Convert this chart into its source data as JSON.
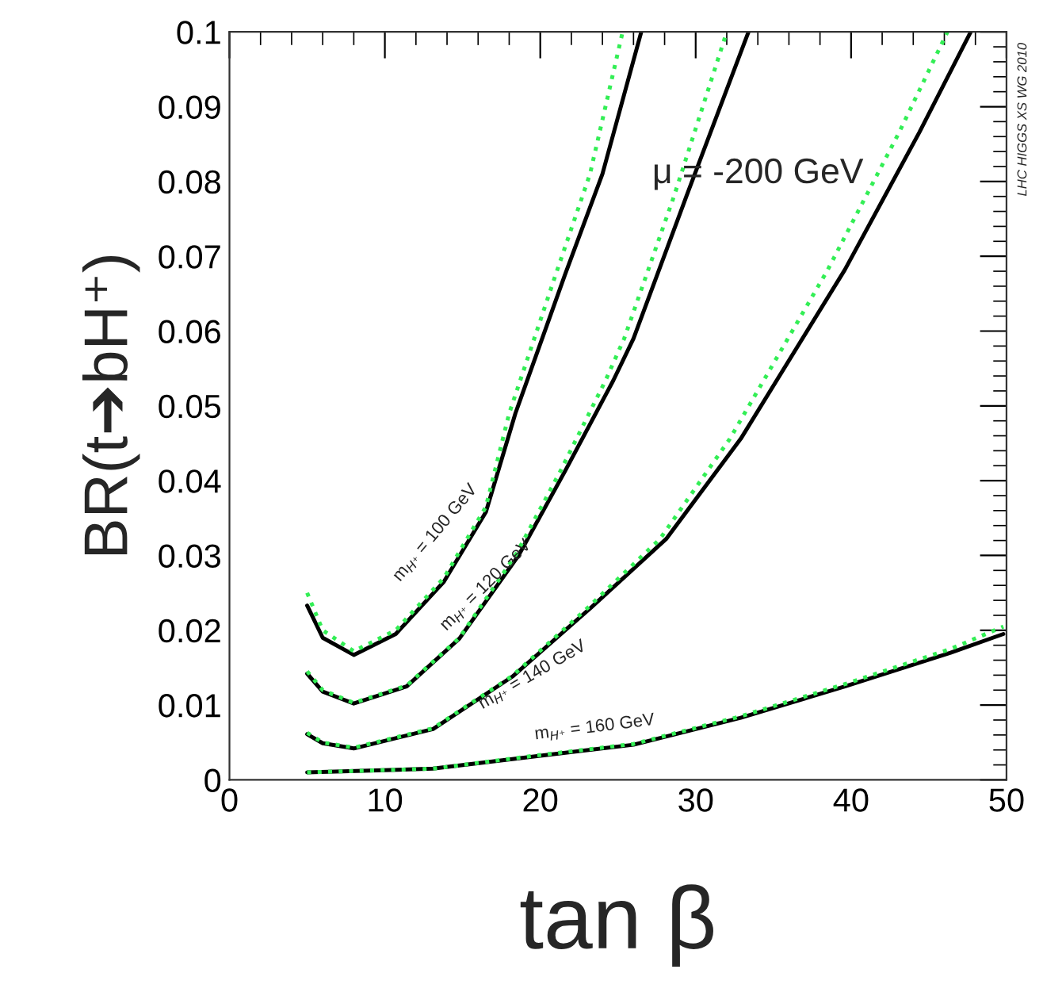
{
  "chart_data": {
    "type": "line",
    "xlabel": "tan β",
    "ylabel": "BR(t➔bH⁺)",
    "xlim": [
      0,
      50
    ],
    "ylim": [
      0,
      0.1
    ],
    "xticks": [
      0,
      10,
      20,
      30,
      40,
      50
    ],
    "yticks": [
      0,
      0.01,
      0.02,
      0.03,
      0.04,
      0.05,
      0.06,
      0.07,
      0.08,
      0.09,
      0.1
    ],
    "series": [
      {
        "color": "#000000",
        "line_style": "solid",
        "x": [
          5,
          6,
          8,
          10.7,
          13.8,
          16.5,
          18.4,
          21.6,
          24,
          26.5
        ],
        "values": [
          0.0233,
          0.019,
          0.0167,
          0.0195,
          0.0265,
          0.0358,
          0.049,
          0.0676,
          0.081,
          0.1
        ]
      },
      {
        "color": "#33ee55",
        "line_style": "dotted",
        "x": [
          5,
          6,
          8,
          10.7,
          13.8,
          16.5,
          18,
          21,
          23.2,
          25.3
        ],
        "values": [
          0.025,
          0.02,
          0.0172,
          0.02,
          0.027,
          0.0365,
          0.049,
          0.0676,
          0.081,
          0.1
        ]
      },
      {
        "color": "#000000",
        "line_style": "solid",
        "x": [
          5,
          6,
          8,
          11.4,
          14.8,
          18.6,
          21.6,
          24.7,
          26,
          29.4,
          33.4
        ],
        "values": [
          0.0142,
          0.0118,
          0.0102,
          0.0125,
          0.0189,
          0.03,
          0.0413,
          0.0534,
          0.059,
          0.078,
          0.1
        ]
      },
      {
        "color": "#33ee55",
        "line_style": "dotted",
        "x": [
          5,
          6,
          8,
          11.4,
          14.8,
          18.4,
          21.3,
          24.2,
          25.4,
          28.6,
          32
        ],
        "values": [
          0.0145,
          0.012,
          0.0103,
          0.0126,
          0.019,
          0.03,
          0.0413,
          0.0534,
          0.059,
          0.078,
          0.1
        ]
      },
      {
        "color": "#000000",
        "line_style": "solid",
        "x": [
          5,
          6,
          8,
          13.1,
          18.2,
          23.3,
          28.1,
          32.9,
          39.6,
          44.4,
          47.7
        ],
        "values": [
          0.0061,
          0.0049,
          0.0042,
          0.0068,
          0.0138,
          0.0231,
          0.0322,
          0.0456,
          0.0682,
          0.0866,
          0.1
        ]
      },
      {
        "color": "#33ee55",
        "line_style": "dotted",
        "x": [
          5,
          6,
          8,
          13.1,
          18.2,
          23.1,
          27.7,
          32.2,
          38.5,
          43.1,
          46.2
        ],
        "values": [
          0.0063,
          0.005,
          0.0043,
          0.0069,
          0.0139,
          0.0231,
          0.0322,
          0.0456,
          0.0682,
          0.0866,
          0.1
        ]
      },
      {
        "color": "#000000",
        "line_style": "solid",
        "x": [
          5,
          13.1,
          19.9,
          26,
          32.9,
          39.6,
          46.4,
          49.8
        ],
        "values": [
          0.001,
          0.0015,
          0.0032,
          0.0047,
          0.0083,
          0.0125,
          0.017,
          0.0195
        ]
      },
      {
        "color": "#33ee55",
        "line_style": "dotted",
        "x": [
          5,
          13.1,
          19.9,
          26,
          32.9,
          39.6,
          46.4,
          49.8
        ],
        "values": [
          0.001,
          0.0015,
          0.0033,
          0.0048,
          0.0085,
          0.0128,
          0.0175,
          0.0205
        ]
      }
    ],
    "annotations": [
      "m$_{H⁺}$ = 100 GeV",
      "m$_{H⁺}$ = 120 GeV",
      "m$_{H⁺}$ = 140 GeV",
      "m$_{H⁺}$ = 160 GeV",
      "μ = -200 GeV",
      "LHC HIGGS XS WG 2010"
    ],
    "grid": false,
    "legend": false
  }
}
